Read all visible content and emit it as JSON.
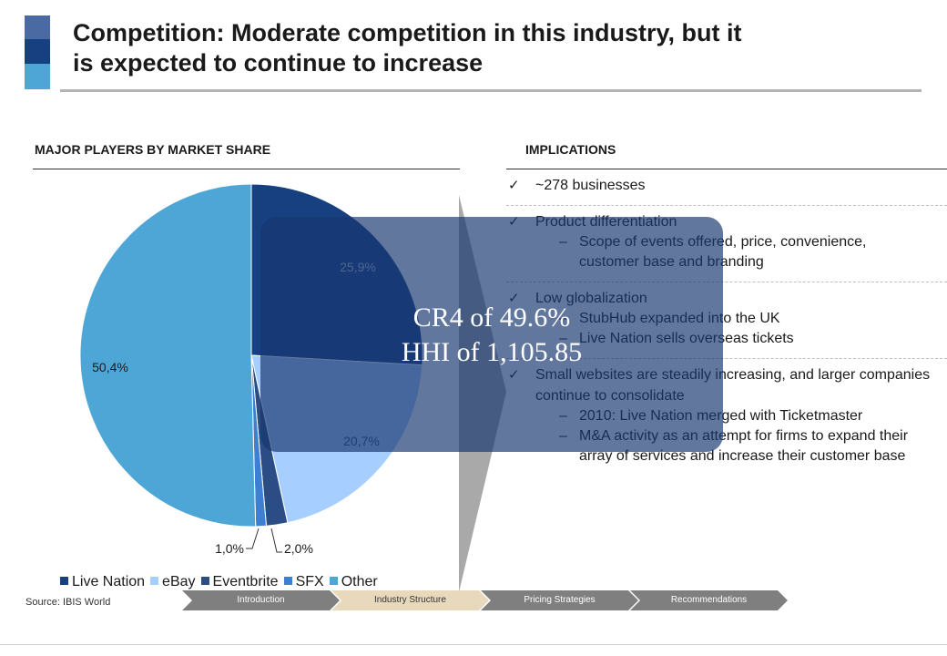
{
  "header": {
    "title_line1": "Competition: Moderate competition in this industry, but it",
    "title_line2": "is expected to continue to increase",
    "accent_colors": [
      "#4a6aa3",
      "#16407f",
      "#4ea6d7"
    ]
  },
  "left_section": {
    "heading": "MAJOR PLAYERS BY MARKET SHARE"
  },
  "right_section": {
    "heading": "IMPLICATIONS",
    "blocks": [
      {
        "text": "~278 businesses",
        "subs": []
      },
      {
        "text": "Product differentiation",
        "subs": [
          "Scope of events offered, price, convenience, customer base and branding"
        ]
      },
      {
        "text": "Low globalization",
        "subs": [
          "StubHub expanded into the UK",
          "Live Nation sells overseas tickets"
        ]
      },
      {
        "text": "Small websites are steadily increasing, and larger companies continue to consolidate",
        "subs": [
          "2010: Live Nation merged with Ticketmaster",
          "M&A activity as an attempt for firms to expand their array of services and increase their customer base"
        ]
      }
    ]
  },
  "overlay": {
    "line1": "CR4 of 49.6%",
    "line2": "HHI of 1,105.85",
    "color": "#173770"
  },
  "chart_data": {
    "type": "pie",
    "categories": [
      "Live Nation",
      "eBay",
      "Eventbrite",
      "SFX",
      "Other"
    ],
    "values": [
      25.9,
      20.7,
      2.0,
      1.0,
      50.4
    ],
    "labels": [
      "25,9%",
      "20,7%",
      "2,0%",
      "1,0%",
      "50,4%"
    ],
    "colors": [
      "#16407f",
      "#a6ceff",
      "#2b4c84",
      "#3d7fd0",
      "#4ea6d7"
    ],
    "legend_position": "bottom"
  },
  "footer": {
    "source": "Source: IBIS World",
    "nav_steps": [
      "Introduction",
      "Industry Structure",
      "Pricing Strategies",
      "Recommendations"
    ],
    "active_step": 1,
    "nav_colors": [
      "#7f7f7f",
      "#e8d9bd",
      "#7f7f7f",
      "#7f7f7f"
    ]
  }
}
